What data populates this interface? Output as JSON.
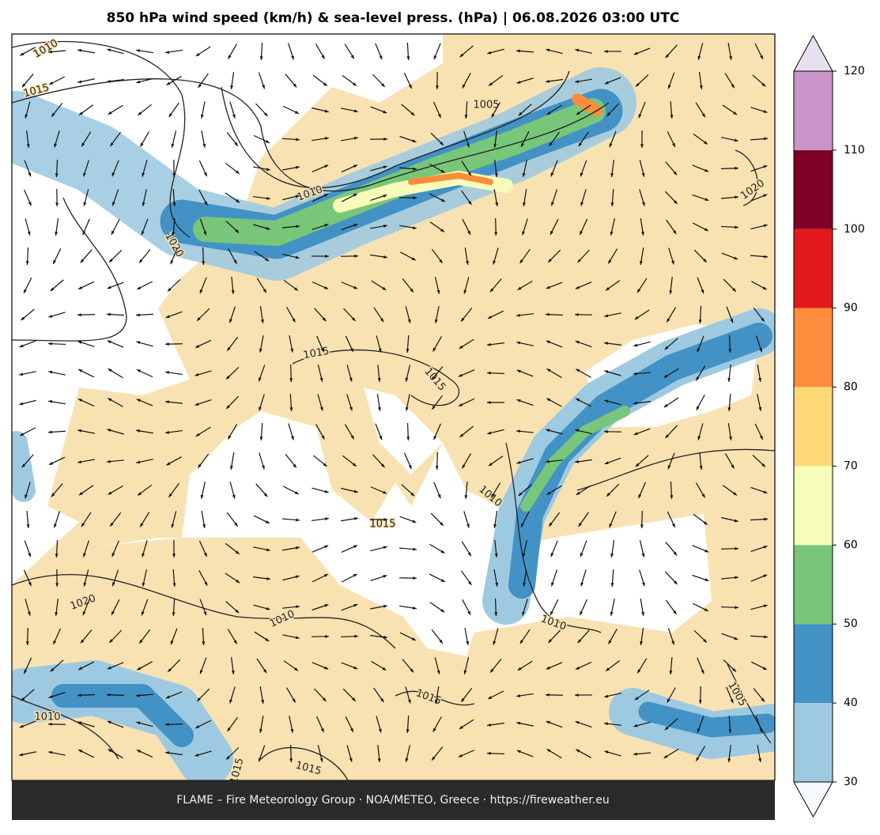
{
  "header": {
    "title": "850 hPa wind speed (km/h) & sea-level press. (hPa)  |  06.08.2026 03:00 UTC"
  },
  "colorbar": {
    "ticks": [
      30,
      40,
      50,
      60,
      70,
      80,
      90,
      100,
      110,
      120
    ],
    "colors": [
      "#9ecae1",
      "#4292c6",
      "#78c679",
      "#f7fcb9",
      "#fed976",
      "#fd8d3c",
      "#e31a1c",
      "#800026",
      "#c994c7"
    ],
    "under_color": "#f7fbff",
    "over_color": "#e7e1ef"
  },
  "contour_labels": [
    "1010",
    "1015",
    "1005",
    "1010",
    "1020",
    "1010",
    "1020",
    "1015",
    "1015",
    "1015",
    "1010",
    "1020",
    "1010",
    "1015",
    "1005",
    "1010",
    "1015",
    "1015"
  ],
  "footer": {
    "text": "FLAME – Fire Meteorology Group · NOA/METEO, Greece · https://fireweather.eu"
  }
}
